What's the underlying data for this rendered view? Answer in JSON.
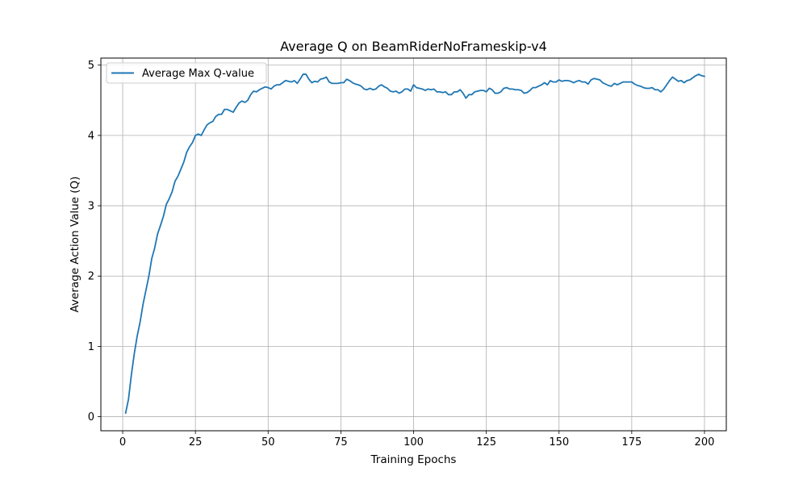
{
  "chart_data": {
    "type": "line",
    "title": "Average Q on BeamRiderNoFrameskip-v4",
    "xlabel": "Training Epochs",
    "ylabel": "Average Action Value (Q)",
    "xlim": [
      -7.5,
      207.5
    ],
    "ylim": [
      -0.2,
      5.1
    ],
    "xticks": [
      0,
      25,
      50,
      75,
      100,
      125,
      150,
      175,
      200
    ],
    "yticks": [
      0,
      1,
      2,
      3,
      4,
      5
    ],
    "grid": true,
    "legend": "top-left",
    "series": [
      {
        "name": "Average Max Q-value",
        "color": "#1f77b4",
        "x": [
          1,
          2,
          3,
          4,
          5,
          6,
          7,
          8,
          9,
          10,
          11,
          12,
          13,
          14,
          15,
          16,
          17,
          18,
          19,
          20,
          21,
          22,
          23,
          24,
          25,
          26,
          27,
          28,
          29,
          30,
          31,
          32,
          33,
          34,
          35,
          36,
          37,
          38,
          39,
          40,
          41,
          42,
          43,
          44,
          45,
          46,
          47,
          48,
          49,
          50,
          51,
          52,
          53,
          54,
          55,
          56,
          57,
          58,
          59,
          60,
          61,
          62,
          63,
          64,
          65,
          66,
          67,
          68,
          69,
          70,
          71,
          72,
          73,
          74,
          75,
          76,
          77,
          78,
          79,
          80,
          81,
          82,
          83,
          84,
          85,
          86,
          87,
          88,
          89,
          90,
          91,
          92,
          93,
          94,
          95,
          96,
          97,
          98,
          99,
          100,
          101,
          102,
          103,
          104,
          105,
          106,
          107,
          108,
          109,
          110,
          111,
          112,
          113,
          114,
          115,
          116,
          117,
          118,
          119,
          120,
          121,
          122,
          123,
          124,
          125,
          126,
          127,
          128,
          129,
          130,
          131,
          132,
          133,
          134,
          135,
          136,
          137,
          138,
          139,
          140,
          141,
          142,
          143,
          144,
          145,
          146,
          147,
          148,
          149,
          150,
          151,
          152,
          153,
          154,
          155,
          156,
          157,
          158,
          159,
          160,
          161,
          162,
          163,
          164,
          165,
          166,
          167,
          168,
          169,
          170,
          171,
          172,
          173,
          174,
          175,
          176,
          177,
          178,
          179,
          180,
          181,
          182,
          183,
          184,
          185,
          186,
          187,
          188,
          189,
          190,
          191,
          192,
          193,
          194,
          195,
          196,
          197,
          198,
          199,
          200
        ],
        "y": [
          0.05,
          0.25,
          0.6,
          0.9,
          1.15,
          1.35,
          1.6,
          1.8,
          2.0,
          2.25,
          2.4,
          2.6,
          2.72,
          2.85,
          3.02,
          3.1,
          3.2,
          3.35,
          3.42,
          3.52,
          3.62,
          3.76,
          3.84,
          3.9,
          4.0,
          4.02,
          4.0,
          4.08,
          4.15,
          4.18,
          4.2,
          4.27,
          4.3,
          4.3,
          4.37,
          4.37,
          4.35,
          4.33,
          4.4,
          4.46,
          4.49,
          4.47,
          4.5,
          4.58,
          4.63,
          4.62,
          4.65,
          4.67,
          4.69,
          4.68,
          4.66,
          4.7,
          4.72,
          4.72,
          4.75,
          4.78,
          4.77,
          4.76,
          4.78,
          4.74,
          4.8,
          4.87,
          4.87,
          4.8,
          4.75,
          4.77,
          4.76,
          4.8,
          4.81,
          4.83,
          4.76,
          4.74,
          4.74,
          4.74,
          4.75,
          4.75,
          4.8,
          4.78,
          4.75,
          4.73,
          4.72,
          4.7,
          4.66,
          4.65,
          4.67,
          4.65,
          4.66,
          4.7,
          4.72,
          4.69,
          4.67,
          4.63,
          4.62,
          4.63,
          4.6,
          4.62,
          4.66,
          4.66,
          4.63,
          4.72,
          4.68,
          4.67,
          4.66,
          4.64,
          4.66,
          4.65,
          4.66,
          4.62,
          4.62,
          4.61,
          4.62,
          4.58,
          4.58,
          4.62,
          4.62,
          4.65,
          4.6,
          4.53,
          4.58,
          4.58,
          4.62,
          4.63,
          4.64,
          4.64,
          4.62,
          4.67,
          4.65,
          4.6,
          4.6,
          4.62,
          4.67,
          4.68,
          4.66,
          4.66,
          4.65,
          4.65,
          4.64,
          4.6,
          4.61,
          4.64,
          4.68,
          4.68,
          4.7,
          4.72,
          4.75,
          4.72,
          4.78,
          4.76,
          4.76,
          4.79,
          4.77,
          4.78,
          4.78,
          4.77,
          4.75,
          4.77,
          4.78,
          4.76,
          4.76,
          4.73,
          4.79,
          4.81,
          4.8,
          4.79,
          4.75,
          4.73,
          4.71,
          4.7,
          4.74,
          4.72,
          4.74,
          4.76,
          4.76,
          4.76,
          4.76,
          4.73,
          4.71,
          4.7,
          4.68,
          4.67,
          4.67,
          4.68,
          4.65,
          4.65,
          4.62,
          4.66,
          4.72,
          4.78,
          4.83,
          4.8,
          4.77,
          4.78,
          4.75,
          4.78,
          4.79,
          4.82,
          4.85,
          4.87,
          4.85,
          4.84
        ]
      }
    ]
  }
}
